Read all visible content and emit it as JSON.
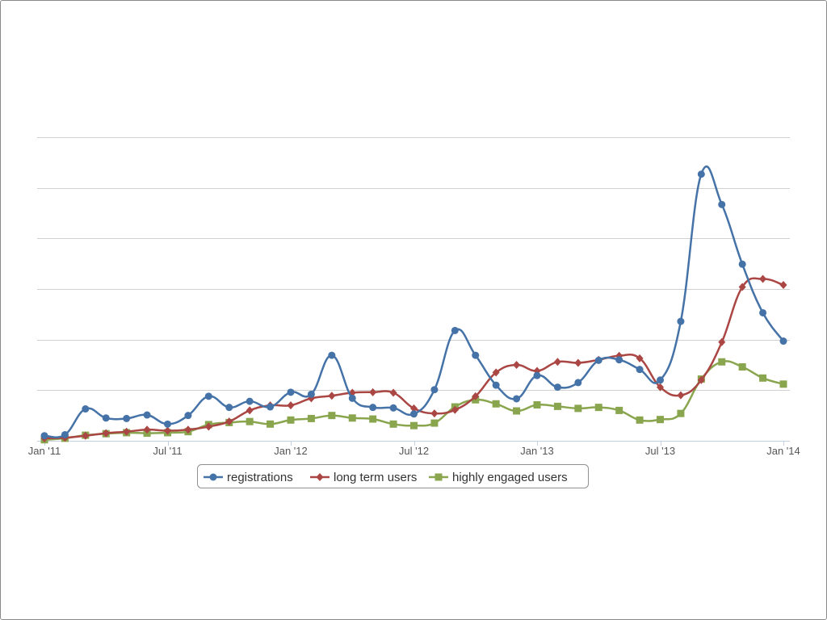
{
  "chart_data": {
    "type": "line",
    "title": "",
    "xlabel": "",
    "ylabel": "",
    "smooth": true,
    "grid": true,
    "legend_position": "bottom-center",
    "x_tick_labels": [
      "Jan '11",
      "Jul '11",
      "Jan '12",
      "Jul '12",
      "Jan '13",
      "Jul '13",
      "Jan '14"
    ],
    "x": [
      "2011-01",
      "2011-02",
      "2011-03",
      "2011-04",
      "2011-05",
      "2011-06",
      "2011-07",
      "2011-08",
      "2011-09",
      "2011-10",
      "2011-11",
      "2011-12",
      "2012-01",
      "2012-02",
      "2012-03",
      "2012-04",
      "2012-05",
      "2012-06",
      "2012-07",
      "2012-08",
      "2012-09",
      "2012-10",
      "2012-11",
      "2012-12",
      "2013-01",
      "2013-02",
      "2013-03",
      "2013-04",
      "2013-05",
      "2013-06",
      "2013-07",
      "2013-08",
      "2013-09",
      "2013-10",
      "2013-11",
      "2013-12",
      "2014-01"
    ],
    "ylim": [
      0,
      6
    ],
    "y_gridlines": 6,
    "series": [
      {
        "name": "registrations",
        "color": "#4572a7",
        "marker": "circle",
        "values": [
          0.1,
          0.12,
          0.63,
          0.45,
          0.44,
          0.51,
          0.33,
          0.5,
          0.88,
          0.66,
          0.78,
          0.67,
          0.96,
          0.92,
          1.69,
          0.84,
          0.66,
          0.65,
          0.53,
          1.01,
          2.18,
          1.69,
          1.1,
          0.83,
          1.29,
          1.06,
          1.15,
          1.59,
          1.6,
          1.41,
          1.2,
          2.36,
          5.27,
          4.67,
          3.49,
          2.53,
          1.97
        ]
      },
      {
        "name": "long term users",
        "color": "#aa4643",
        "marker": "diamond",
        "values": [
          0.05,
          0.06,
          0.1,
          0.15,
          0.18,
          0.22,
          0.2,
          0.22,
          0.28,
          0.38,
          0.6,
          0.7,
          0.7,
          0.84,
          0.89,
          0.95,
          0.96,
          0.95,
          0.64,
          0.54,
          0.61,
          0.88,
          1.35,
          1.5,
          1.38,
          1.56,
          1.54,
          1.6,
          1.68,
          1.63,
          1.06,
          0.9,
          1.2,
          1.95,
          3.04,
          3.2,
          3.08
        ]
      },
      {
        "name": "highly engaged users",
        "color": "#89a54e",
        "marker": "square",
        "values": [
          0.02,
          0.05,
          0.11,
          0.14,
          0.16,
          0.15,
          0.16,
          0.18,
          0.32,
          0.36,
          0.38,
          0.33,
          0.41,
          0.44,
          0.5,
          0.45,
          0.43,
          0.33,
          0.3,
          0.35,
          0.67,
          0.81,
          0.73,
          0.59,
          0.71,
          0.68,
          0.64,
          0.66,
          0.6,
          0.41,
          0.42,
          0.54,
          1.22,
          1.56,
          1.46,
          1.24,
          1.12
        ]
      }
    ]
  }
}
